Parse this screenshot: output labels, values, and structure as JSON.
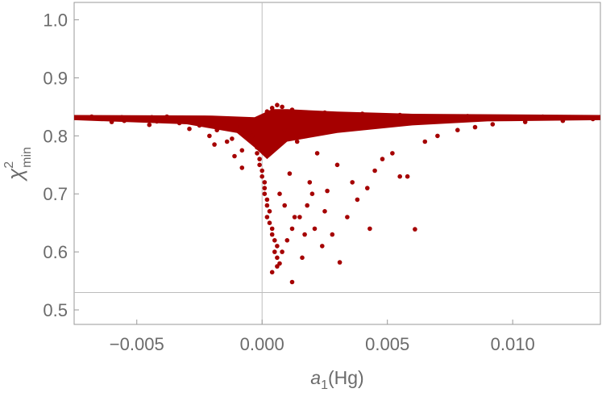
{
  "chart_data": {
    "type": "scatter",
    "title": "",
    "xlabel": {
      "main": "a",
      "sub": "1",
      "suffix": "(Hg)"
    },
    "ylabel": {
      "main": "χ",
      "sup": "2",
      "sub": "min"
    },
    "xlim": [
      -0.0075,
      0.0135
    ],
    "ylim": [
      0.475,
      1.03
    ],
    "x_ticks": [
      {
        "value": -0.005,
        "label": "−0.005"
      },
      {
        "value": 0.0,
        "label": "0.000"
      },
      {
        "value": 0.005,
        "label": "0.005"
      },
      {
        "value": 0.01,
        "label": "0.010"
      }
    ],
    "y_ticks": [
      {
        "value": 0.5,
        "label": "0.5"
      },
      {
        "value": 0.6,
        "label": "0.6"
      },
      {
        "value": 0.7,
        "label": "0.7"
      },
      {
        "value": 0.8,
        "label": "0.8"
      },
      {
        "value": 0.9,
        "label": "0.9"
      },
      {
        "value": 1.0,
        "label": "1.0"
      }
    ],
    "reference_lines": {
      "x": 0.0,
      "y": 0.53
    },
    "marker_color": "#a50000",
    "grid": false,
    "series": [
      {
        "points": [
          [
            -0.0074,
            0.832
          ],
          [
            -0.0068,
            0.833
          ],
          [
            -0.0062,
            0.831
          ],
          [
            -0.0056,
            0.832
          ],
          [
            -0.005,
            0.83
          ],
          [
            -0.0044,
            0.832
          ],
          [
            -0.0038,
            0.833
          ],
          [
            -0.0032,
            0.831
          ],
          [
            -0.0026,
            0.829
          ],
          [
            -0.002,
            0.826
          ],
          [
            -0.0015,
            0.822
          ],
          [
            -0.001,
            0.815
          ],
          [
            -0.0007,
            0.81
          ],
          [
            -0.0005,
            0.805
          ],
          [
            -0.0004,
            0.8
          ],
          [
            -0.0003,
            0.79
          ],
          [
            -0.0002,
            0.78
          ],
          [
            -0.0002,
            0.77
          ],
          [
            -0.0001,
            0.76
          ],
          [
            -0.0001,
            0.75
          ],
          [
            0.0,
            0.74
          ],
          [
            0.0,
            0.73
          ],
          [
            0.0001,
            0.72
          ],
          [
            0.0001,
            0.71
          ],
          [
            0.0001,
            0.7
          ],
          [
            -0.0008,
            0.775
          ],
          [
            -0.0012,
            0.795
          ],
          [
            -0.0018,
            0.81
          ],
          [
            -0.0025,
            0.818
          ],
          [
            -0.0033,
            0.822
          ],
          [
            -0.0042,
            0.825
          ],
          [
            -0.0055,
            0.826
          ],
          [
            -0.006,
            0.824
          ],
          [
            -0.0045,
            0.819
          ],
          [
            -0.0029,
            0.812
          ],
          [
            -0.0021,
            0.8
          ],
          [
            -0.0014,
            0.79
          ],
          [
            -0.0008,
            0.745
          ],
          [
            -0.0011,
            0.765
          ],
          [
            -0.0019,
            0.785
          ],
          [
            0.0002,
            0.69
          ],
          [
            0.0002,
            0.68
          ],
          [
            0.0003,
            0.67
          ],
          [
            0.0002,
            0.66
          ],
          [
            0.0003,
            0.65
          ],
          [
            0.0004,
            0.64
          ],
          [
            0.0004,
            0.63
          ],
          [
            0.0005,
            0.62
          ],
          [
            0.0006,
            0.61
          ],
          [
            0.0005,
            0.6
          ],
          [
            0.0006,
            0.59
          ],
          [
            0.0007,
            0.58
          ],
          [
            0.0006,
            0.575
          ],
          [
            0.0004,
            0.565
          ],
          [
            0.0008,
            0.6
          ],
          [
            0.001,
            0.62
          ],
          [
            0.0012,
            0.64
          ],
          [
            0.0015,
            0.66
          ],
          [
            0.0018,
            0.68
          ],
          [
            0.002,
            0.7
          ],
          [
            0.0012,
            0.548
          ],
          [
            0.0016,
            0.59
          ],
          [
            0.0024,
            0.61
          ],
          [
            0.0028,
            0.63
          ],
          [
            0.0031,
            0.582
          ],
          [
            0.0034,
            0.66
          ],
          [
            0.0038,
            0.69
          ],
          [
            0.0042,
            0.71
          ],
          [
            0.0045,
            0.74
          ],
          [
            0.0048,
            0.76
          ],
          [
            0.0043,
            0.64
          ],
          [
            0.0055,
            0.73
          ],
          [
            0.0058,
            0.73
          ],
          [
            0.0061,
            0.639
          ],
          [
            0.0052,
            0.77
          ],
          [
            0.0065,
            0.79
          ],
          [
            0.007,
            0.8
          ],
          [
            0.0078,
            0.81
          ],
          [
            0.0085,
            0.815
          ],
          [
            0.0092,
            0.82
          ],
          [
            0.0105,
            0.824
          ],
          [
            0.012,
            0.826
          ],
          [
            0.0132,
            0.829
          ],
          [
            0.0125,
            0.832
          ],
          [
            0.0112,
            0.833
          ],
          [
            0.0098,
            0.832
          ],
          [
            0.0082,
            0.834
          ],
          [
            0.0068,
            0.833
          ],
          [
            0.0055,
            0.836
          ],
          [
            0.004,
            0.838
          ],
          [
            0.0025,
            0.84
          ],
          [
            0.0012,
            0.845
          ],
          [
            0.0008,
            0.85
          ],
          [
            0.0006,
            0.853
          ],
          [
            0.0004,
            0.848
          ],
          [
            0.0002,
            0.842
          ],
          [
            0.0009,
            0.81
          ],
          [
            0.0014,
            0.79
          ],
          [
            0.0022,
            0.77
          ],
          [
            0.003,
            0.75
          ],
          [
            0.0036,
            0.72
          ],
          [
            0.0026,
            0.705
          ],
          [
            0.0019,
            0.72
          ],
          [
            0.0011,
            0.735
          ],
          [
            0.0007,
            0.7
          ],
          [
            0.0009,
            0.68
          ],
          [
            0.0013,
            0.66
          ],
          [
            0.0017,
            0.63
          ],
          [
            0.0021,
            0.64
          ],
          [
            0.0025,
            0.67
          ]
        ]
      }
    ]
  }
}
